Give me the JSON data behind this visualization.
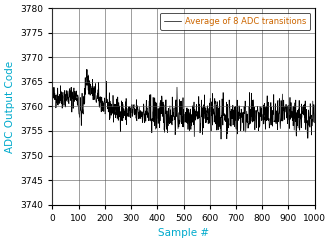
{
  "title": "",
  "xlabel": "Sample #",
  "ylabel": "ADC Output Code",
  "xlim": [
    0,
    1000
  ],
  "ylim": [
    3740,
    3780
  ],
  "xticks": [
    0,
    100,
    200,
    300,
    400,
    500,
    600,
    700,
    800,
    900,
    1000
  ],
  "yticks": [
    3740,
    3745,
    3750,
    3755,
    3760,
    3765,
    3770,
    3775,
    3780
  ],
  "legend_label": "Average of 8 ADC transitions",
  "line_color": "#000000",
  "xlabel_color": "#00AACC",
  "ylabel_color": "#00AACC",
  "legend_text_color": "#CC6600",
  "grid_color": "#333333",
  "background_color": "#FFFFFF",
  "figsize": [
    3.31,
    2.43
  ],
  "dpi": 100,
  "seed": 42,
  "n_samples": 1001
}
